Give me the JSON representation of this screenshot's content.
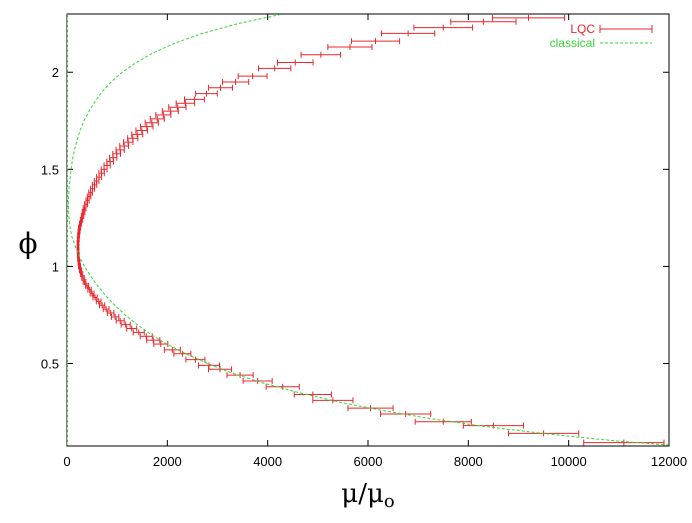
{
  "chart_data": {
    "type": "scatter",
    "title": "",
    "xlabel": "μ/μo",
    "ylabel": "ϕ",
    "xlim": [
      0,
      12000
    ],
    "ylim": [
      0.075,
      2.3
    ],
    "xticks": [
      0,
      2000,
      4000,
      6000,
      8000,
      10000,
      12000
    ],
    "xtick_labels": [
      "0",
      "2000",
      "4000",
      "6000",
      "8000",
      "10000",
      "12000"
    ],
    "yticks": [
      0.5,
      1,
      1.5,
      2
    ],
    "ytick_labels": [
      "0.5",
      "1",
      "1.5",
      "2"
    ],
    "grid": false,
    "legend_position": "top-right",
    "series": [
      {
        "name": "LQC",
        "color": "#e8262d",
        "style": "errorbar",
        "phi": [
          0.0927,
          0.14,
          0.18,
          0.2,
          0.24,
          0.27,
          0.31,
          0.34,
          0.38,
          0.41,
          0.44,
          0.47,
          0.49,
          0.52,
          0.55,
          0.57,
          0.6,
          0.62,
          0.64,
          0.66,
          0.68,
          0.7,
          0.72,
          0.74,
          0.76,
          0.78,
          0.8,
          0.82,
          0.84,
          0.86,
          0.88,
          0.9,
          0.92,
          0.94,
          0.96,
          0.98,
          1.0,
          1.02,
          1.04,
          1.06,
          1.08,
          1.1,
          1.12,
          1.14,
          1.16,
          1.18,
          1.2,
          1.22,
          1.24,
          1.26,
          1.28,
          1.3,
          1.32,
          1.34,
          1.36,
          1.38,
          1.4,
          1.42,
          1.44,
          1.46,
          1.48,
          1.5,
          1.52,
          1.54,
          1.56,
          1.58,
          1.6,
          1.62,
          1.64,
          1.66,
          1.68,
          1.7,
          1.72,
          1.74,
          1.76,
          1.78,
          1.8,
          1.82,
          1.84,
          1.86,
          1.89,
          1.92,
          1.95,
          1.98,
          2.02,
          2.05,
          2.09,
          2.13,
          2.16,
          2.2,
          2.23,
          2.26,
          2.28
        ],
        "mu": [
          11100,
          9500,
          8500,
          7500,
          6750,
          6050,
          5300,
          4900,
          4300,
          3800,
          3450,
          3050,
          2830,
          2560,
          2300,
          2100,
          1870,
          1720,
          1580,
          1430,
          1290,
          1170,
          1060,
          960,
          870,
          780,
          700,
          630,
          560,
          500,
          450,
          400,
          350,
          320,
          290,
          270,
          250,
          240,
          230,
          225,
          220,
          220,
          220,
          225,
          230,
          240,
          250,
          270,
          290,
          310,
          330,
          350,
          380,
          410,
          440,
          470,
          510,
          550,
          590,
          640,
          690,
          740,
          800,
          860,
          920,
          990,
          1060,
          1140,
          1220,
          1310,
          1400,
          1490,
          1590,
          1690,
          1800,
          1920,
          2060,
          2200,
          2360,
          2540,
          2780,
          3060,
          3360,
          3700,
          4140,
          4550,
          5060,
          5640,
          6150,
          6800,
          7500,
          8300,
          9200
        ],
        "mu_err": [
          800,
          700,
          600,
          560,
          500,
          450,
          400,
          370,
          330,
          290,
          260,
          230,
          210,
          190,
          170,
          160,
          140,
          130,
          120,
          110,
          100,
          90,
          80,
          72,
          65,
          58,
          52,
          46,
          42,
          38,
          34,
          30,
          27,
          25,
          23,
          21,
          20,
          19,
          18,
          18,
          17,
          17,
          17,
          18,
          18,
          19,
          20,
          21,
          23,
          24,
          26,
          28,
          30,
          32,
          35,
          37,
          40,
          43,
          46,
          50,
          54,
          58,
          62,
          67,
          72,
          77,
          82,
          88,
          95,
          102,
          109,
          116,
          124,
          132,
          140,
          150,
          160,
          172,
          184,
          198,
          216,
          238,
          262,
          288,
          322,
          354,
          394,
          440,
          480,
          530,
          585,
          650,
          720
        ]
      },
      {
        "name": "classical",
        "color": "#33d633",
        "style": "dashed-line",
        "phi": [
          0.08,
          0.1,
          0.12,
          0.15,
          0.18,
          0.22,
          0.26,
          0.3,
          0.35,
          0.4,
          0.45,
          0.5,
          0.55,
          0.6,
          0.65,
          0.7,
          0.75,
          0.8,
          0.85,
          0.9,
          0.95,
          1.0,
          1.05,
          1.1,
          1.15,
          1.2,
          1.25,
          1.3,
          1.35,
          1.4,
          1.45,
          1.5,
          1.55,
          1.6,
          1.65,
          1.7,
          1.75,
          1.8,
          1.85,
          1.9,
          1.95,
          2.0,
          2.05,
          2.1,
          2.15,
          2.2,
          2.25,
          2.3
        ],
        "mu": [
          12000,
          11000,
          10200,
          9150,
          8200,
          7150,
          6250,
          5450,
          4620,
          3900,
          3300,
          2800,
          2370,
          1990,
          1670,
          1400,
          1160,
          950,
          770,
          610,
          470,
          350,
          250,
          170,
          100,
          60,
          40,
          30,
          30,
          40,
          60,
          80,
          110,
          150,
          200,
          260,
          340,
          440,
          560,
          700,
          880,
          1100,
          1380,
          1720,
          2150,
          2700,
          3400,
          4300
        ]
      },
      {
        "name": "",
        "color": "#33d633",
        "style": "dashed-line",
        "phi": [
          0.08,
          0.3,
          0.6,
          0.9,
          1.2,
          1.5,
          1.8,
          2.1,
          2.3
        ],
        "mu": [
          0,
          0,
          0,
          0,
          0,
          0,
          0,
          0,
          0
        ]
      }
    ]
  },
  "legend": {
    "lqc_label": "LQC",
    "classical_label": "classical"
  },
  "axes": {
    "xlabel_main": "μ/μ",
    "xlabel_sub": "o",
    "ylabel": "ϕ"
  }
}
